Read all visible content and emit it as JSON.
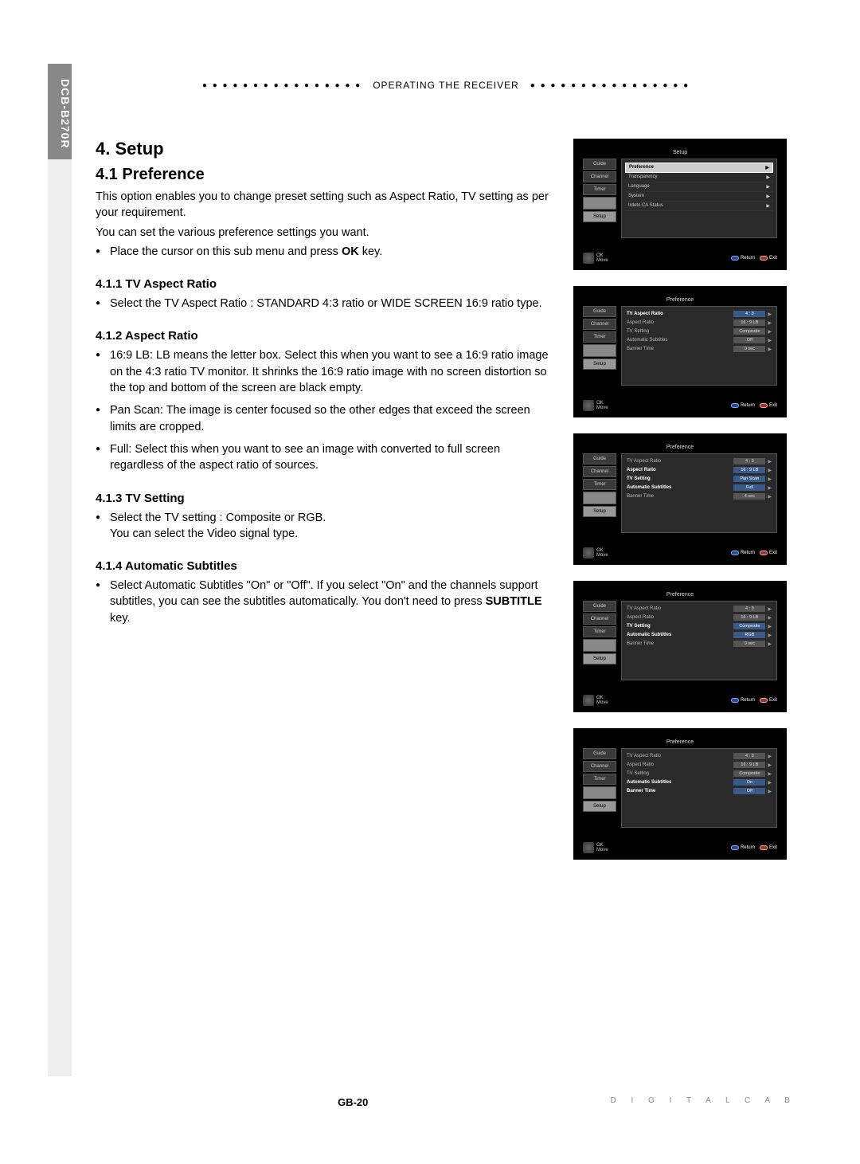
{
  "model": "DCB-B270R",
  "header": "OPERATING THE RECEIVER",
  "h1": "4. Setup",
  "h2": "4.1 Preference",
  "intro_p1": "This option enables you to change preset setting such as Aspect Ratio, TV setting as per your requirement.",
  "intro_p2": "You can set the various preference settings you want.",
  "intro_bullet_pre": "Place the cursor on this sub menu and press ",
  "intro_bullet_bold": "OK",
  "intro_bullet_post": " key.",
  "s411_h": "4.1.1 TV Aspect Ratio",
  "s411_b": "Select the TV Aspect Ratio : STANDARD 4:3 ratio or WIDE SCREEN 16:9 ratio type.",
  "s412_h": "4.1.2 Aspect Ratio",
  "s412_b1": "16:9 LB: LB means the letter box. Select this when you want to see a 16:9 ratio image on the 4:3 ratio TV monitor. It shrinks the 16:9 ratio image with no screen distortion so the top and bottom of the screen are black empty.",
  "s412_b2": "Pan Scan: The image is center focused so the other edges that exceed the screen limits are cropped.",
  "s412_b3": "Full: Select this when you want to see an image with converted to full screen regardless of the aspect ratio of sources.",
  "s413_h": "4.1.3 TV Setting",
  "s413_b_l1": "Select the TV setting : Composite or RGB.",
  "s413_b_l2": "You can select the Video signal type.",
  "s414_h": "4.1.4 Automatic Subtitles",
  "s414_b_pre": "Select Automatic Subtitles \"On\" or \"Off\". If you select \"On\" and the channels support subtitles, you can see the subtitles automatically. You don't need to press ",
  "s414_b_bold": "SUBTITLE",
  "s414_b_post": " key.",
  "page_num": "GB-20",
  "footer_brand": "D I G I T A L   C A B",
  "side": {
    "guide": "Guide",
    "channel": "Channel",
    "timer": "Timer",
    "setup": "Setup"
  },
  "thumb_foot": {
    "ok": "OK",
    "move": "Move",
    "return": "Return",
    "exit": "Exit"
  },
  "thumb1": {
    "title": "Setup",
    "items": [
      "Preference",
      "Transparency",
      "Language",
      "System",
      "Irdeto CA Status"
    ]
  },
  "thumb2": {
    "title": "Preference",
    "rows": [
      {
        "label": "TV Aspect Ratio",
        "value": "4 : 3",
        "hl": true
      },
      {
        "label": "Aspect Ratio",
        "value": "16 : 9 LB"
      },
      {
        "label": "TV Setting",
        "value": "Composite"
      },
      {
        "label": "Automatic Subtitles",
        "value": "Off"
      },
      {
        "label": "Banner Time",
        "value": "0 sec"
      }
    ]
  },
  "thumb3": {
    "title": "Preference",
    "rows": [
      {
        "label": "TV Aspect Ratio",
        "value": "4 : 3"
      },
      {
        "label": "Aspect Ratio",
        "value": "16 : 9 LB",
        "hl": true
      },
      {
        "label": "TV Setting",
        "value": "Pan Scan",
        "hl": true
      },
      {
        "label": "Automatic Subtitles",
        "value": "Full",
        "hl": true
      },
      {
        "label": "Banner Time",
        "value": "4 sec"
      }
    ]
  },
  "thumb4": {
    "title": "Preference",
    "rows": [
      {
        "label": "TV Aspect Ratio",
        "value": "4 : 3"
      },
      {
        "label": "Aspect Ratio",
        "value": "16 : 9 LB"
      },
      {
        "label": "TV Setting",
        "value": "Composite",
        "hl": true
      },
      {
        "label": "Automatic Subtitles",
        "value": "RGB",
        "hl": true
      },
      {
        "label": "Banner Time",
        "value": "0 sec"
      }
    ]
  },
  "thumb5": {
    "title": "Preference",
    "rows": [
      {
        "label": "TV Aspect Ratio",
        "value": "4 : 3"
      },
      {
        "label": "Aspect Ratio",
        "value": "16 : 9 LB"
      },
      {
        "label": "TV Setting",
        "value": "Composite"
      },
      {
        "label": "Automatic Subtitles",
        "value": "On",
        "hl": true
      },
      {
        "label": "Banner Time",
        "value": "Off",
        "hl": true
      }
    ]
  }
}
